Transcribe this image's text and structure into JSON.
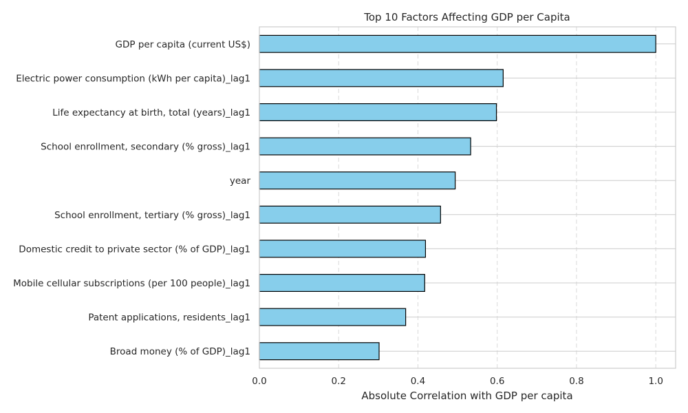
{
  "chart_data": {
    "type": "bar",
    "orientation": "horizontal",
    "title": "Top 10 Factors Affecting GDP per Capita",
    "xlabel": "Absolute Correlation with GDP per capita",
    "ylabel": "",
    "xlim": [
      0,
      1.05
    ],
    "xticks": [
      0.0,
      0.2,
      0.4,
      0.6,
      0.8,
      1.0
    ],
    "xtick_labels": [
      "0.0",
      "0.2",
      "0.4",
      "0.6",
      "0.8",
      "1.0"
    ],
    "grid": true,
    "categories": [
      "GDP per capita (current US$)",
      "Electric power consumption (kWh per capita)_lag1",
      "Life expectancy at birth, total (years)_lag1",
      "School enrollment, secondary (% gross)_lag1",
      "year",
      "School enrollment, tertiary (% gross)_lag1",
      "Domestic credit to private sector (% of GDP)_lag1",
      "Mobile cellular subscriptions (per 100 people)_lag1",
      "Patent applications, residents_lag1",
      "Broad money (% of GDP)_lag1"
    ],
    "values": [
      1.0,
      0.615,
      0.598,
      0.533,
      0.494,
      0.457,
      0.419,
      0.417,
      0.369,
      0.302
    ],
    "colors": {
      "bar": "#87CEEB",
      "edge": "#000000",
      "grid": "#d9d9d9",
      "spine": "#cccccc"
    }
  }
}
